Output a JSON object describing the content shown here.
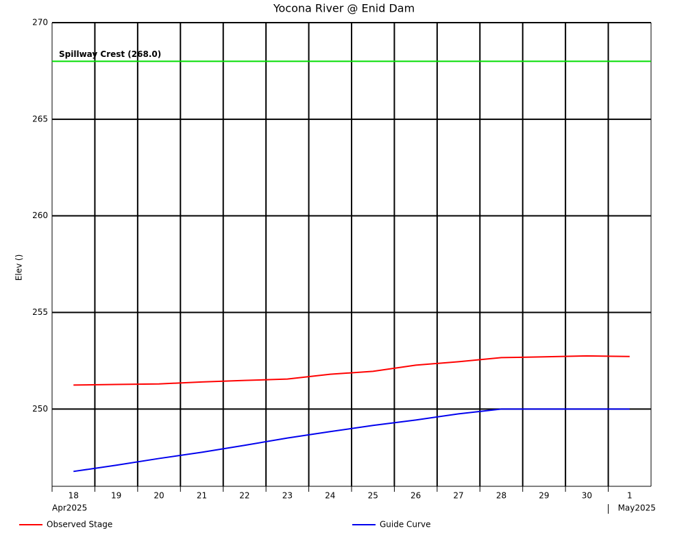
{
  "chart_data": {
    "type": "line",
    "title": "Yocona River @ Enid Dam",
    "y_label": "Elev ()",
    "categories": [
      "18",
      "19",
      "20",
      "21",
      "22",
      "23",
      "24",
      "25",
      "26",
      "27",
      "28",
      "29",
      "30",
      "1"
    ],
    "months": [
      "Apr2025",
      "May2025"
    ],
    "series": [
      {
        "name": "Observed Stage",
        "color": "#ff0000",
        "values": [
          251.24,
          251.27,
          251.3,
          251.4,
          251.48,
          251.55,
          251.8,
          251.95,
          252.27,
          252.45,
          252.66,
          252.7,
          252.75,
          252.72
        ]
      },
      {
        "name": "Guide Curve",
        "color": "#0000ee",
        "values": [
          246.77,
          247.09,
          247.44,
          247.76,
          248.12,
          248.5,
          248.83,
          249.15,
          249.43,
          249.75,
          250,
          250,
          250,
          250
        ]
      }
    ],
    "annotations": [
      {
        "text": "Spillway Crest (268.0)",
        "y": 268,
        "color": "#00dd00"
      }
    ],
    "ylim": [
      246,
      270
    ],
    "yticks": [
      250,
      255,
      260,
      265,
      270
    ],
    "grid": true
  }
}
